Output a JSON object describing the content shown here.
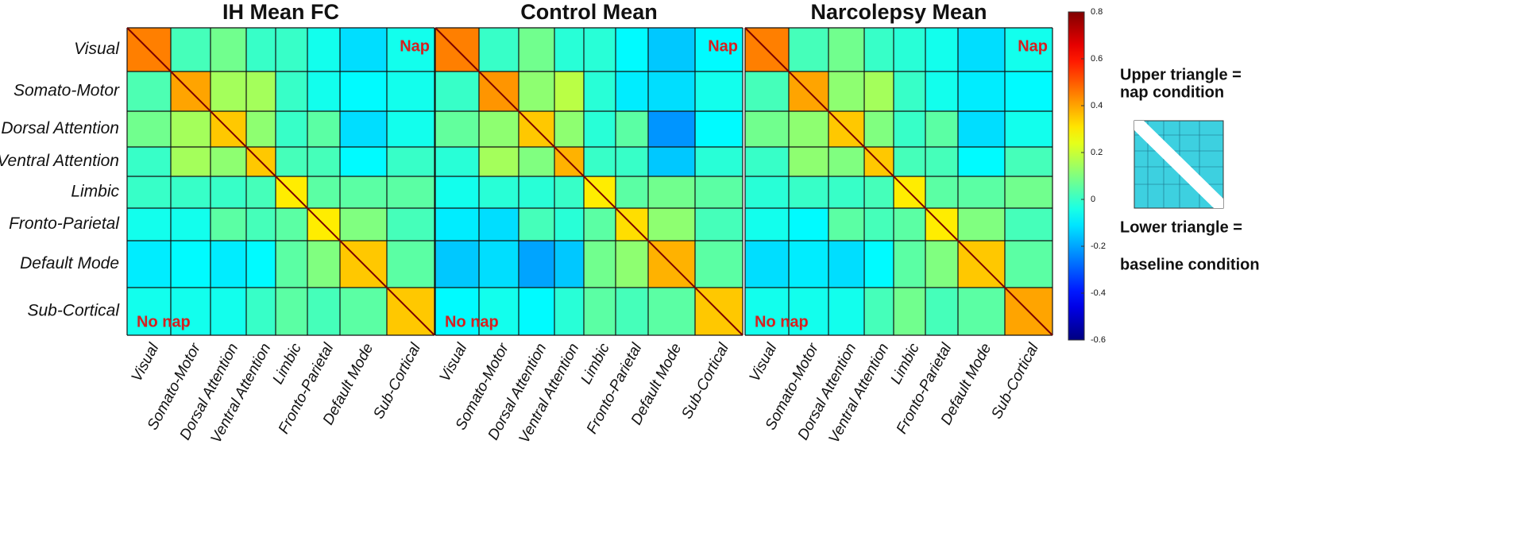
{
  "chart_data": [
    {
      "type": "heatmap",
      "title": "IH Mean FC",
      "categories": [
        "Visual",
        "Somato-Motor",
        "Dorsal Attention",
        "Ventral Attention",
        "Limbic",
        "Fronto-Parietal",
        "Default Mode",
        "Sub-Cortical"
      ],
      "annotations": [
        "Nap",
        "No nap"
      ],
      "values": [
        [
          0.45,
          0.02,
          0.08,
          0.0,
          0.0,
          -0.05,
          -0.12,
          -0.05
        ],
        [
          0.03,
          0.4,
          0.15,
          0.15,
          0.0,
          -0.05,
          -0.08,
          -0.05
        ],
        [
          0.08,
          0.15,
          0.35,
          0.12,
          0.0,
          0.05,
          -0.12,
          -0.05
        ],
        [
          0.0,
          0.15,
          0.12,
          0.35,
          0.02,
          0.02,
          -0.08,
          0.0
        ],
        [
          0.0,
          0.0,
          0.0,
          0.02,
          0.3,
          0.05,
          0.05,
          0.05
        ],
        [
          -0.05,
          -0.05,
          0.05,
          0.02,
          0.05,
          0.3,
          0.1,
          0.02
        ],
        [
          -0.1,
          -0.08,
          -0.1,
          -0.08,
          0.05,
          0.1,
          0.35,
          0.05
        ],
        [
          -0.05,
          -0.05,
          -0.05,
          0.0,
          0.05,
          0.02,
          0.05,
          0.35
        ]
      ]
    },
    {
      "type": "heatmap",
      "title": "Control Mean",
      "categories": [
        "Visual",
        "Somato-Motor",
        "Dorsal Attention",
        "Ventral Attention",
        "Limbic",
        "Fronto-Parietal",
        "Default Mode",
        "Sub-Cortical"
      ],
      "annotations": [
        "Nap",
        "No nap"
      ],
      "values": [
        [
          0.45,
          0.0,
          0.08,
          -0.02,
          -0.02,
          -0.08,
          -0.15,
          -0.08
        ],
        [
          0.0,
          0.42,
          0.12,
          0.18,
          -0.02,
          -0.1,
          -0.12,
          -0.05
        ],
        [
          0.06,
          0.12,
          0.35,
          0.12,
          -0.02,
          0.05,
          -0.22,
          -0.08
        ],
        [
          -0.02,
          0.15,
          0.1,
          0.38,
          0.0,
          0.0,
          -0.15,
          -0.02
        ],
        [
          -0.05,
          -0.02,
          -0.02,
          0.0,
          0.3,
          0.05,
          0.08,
          0.05
        ],
        [
          -0.1,
          -0.12,
          0.02,
          -0.02,
          0.05,
          0.32,
          0.12,
          0.02
        ],
        [
          -0.15,
          -0.12,
          -0.2,
          -0.15,
          0.08,
          0.12,
          0.38,
          0.05
        ],
        [
          -0.08,
          -0.05,
          -0.08,
          -0.02,
          0.05,
          0.02,
          0.05,
          0.35
        ]
      ]
    },
    {
      "type": "heatmap",
      "title": "Narcolepsy Mean",
      "categories": [
        "Visual",
        "Somato-Motor",
        "Dorsal Attention",
        "Ventral Attention",
        "Limbic",
        "Fronto-Parietal",
        "Default Mode",
        "Sub-Cortical"
      ],
      "annotations": [
        "Nap",
        "No nap"
      ],
      "values": [
        [
          0.45,
          0.02,
          0.08,
          0.0,
          -0.02,
          -0.05,
          -0.12,
          -0.05
        ],
        [
          0.02,
          0.4,
          0.12,
          0.15,
          0.0,
          -0.05,
          -0.1,
          -0.08
        ],
        [
          0.08,
          0.12,
          0.35,
          0.1,
          0.0,
          0.05,
          -0.12,
          -0.05
        ],
        [
          0.0,
          0.12,
          0.1,
          0.35,
          0.02,
          0.02,
          -0.08,
          0.02
        ],
        [
          -0.02,
          0.0,
          0.0,
          0.02,
          0.3,
          0.05,
          0.05,
          0.08
        ],
        [
          -0.05,
          -0.08,
          0.05,
          0.02,
          0.05,
          0.3,
          0.1,
          0.02
        ],
        [
          -0.12,
          -0.1,
          -0.12,
          -0.08,
          0.05,
          0.1,
          0.35,
          0.05
        ],
        [
          -0.05,
          -0.05,
          -0.05,
          0.02,
          0.08,
          0.02,
          0.05,
          0.4
        ]
      ]
    }
  ],
  "colorbar": {
    "colormap": "jet",
    "lim": [
      -0.6,
      0.8
    ],
    "ticks": [
      0.8,
      0.6,
      0.4,
      0.2,
      0,
      -0.2,
      -0.4,
      -0.6
    ]
  },
  "notes": [
    "Upper triangle =",
    "nap condition",
    "Lower triangle =",
    "baseline condition"
  ]
}
